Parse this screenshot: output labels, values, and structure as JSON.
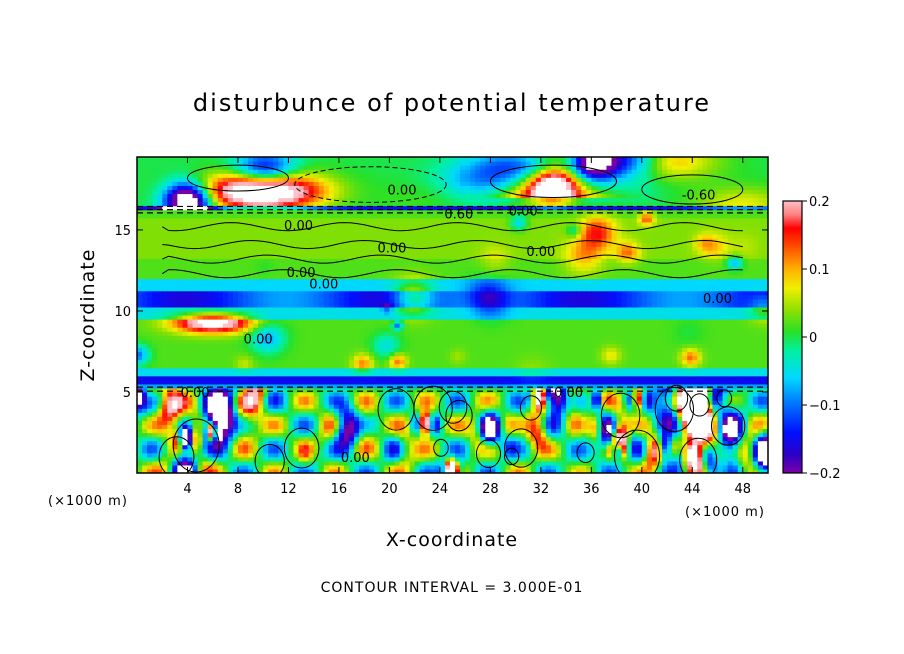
{
  "chart_data": {
    "type": "heatmap",
    "title": "disturbunce of potential temperature",
    "xlabel": "X-coordinate",
    "ylabel": "Z-coordinate",
    "x_unit": "(×1000 m)",
    "x_unit_left": "(×1000 m)",
    "xlim": [
      0,
      50
    ],
    "ylim": [
      0,
      19.5
    ],
    "x_ticks": [
      4,
      8,
      12,
      16,
      20,
      24,
      28,
      32,
      36,
      40,
      44,
      48
    ],
    "y_ticks": [
      5,
      10,
      15
    ],
    "colorbar": {
      "range": [
        -0.2,
        0.2
      ],
      "ticks": [
        {
          "v": 0.2,
          "label": "0.2"
        },
        {
          "v": 0.1,
          "label": "0.1"
        },
        {
          "v": 0,
          "label": "0"
        },
        {
          "v": -0.1,
          "label": "−0.1"
        },
        {
          "v": -0.2,
          "label": "−0.2"
        }
      ]
    },
    "contour_interval_text": "CONTOUR INTERVAL = 3.000E-01",
    "contour_labels": [
      {
        "text": "0.00",
        "x": 21.0,
        "z": 17.5
      },
      {
        "text": "0.60",
        "x": 25.5,
        "z": 16.0
      },
      {
        "text": "0.00",
        "x": 30.6,
        "z": 16.2
      },
      {
        "text": "-0.60",
        "x": 44.5,
        "z": 17.2
      },
      {
        "text": "0.00",
        "x": 12.8,
        "z": 15.3
      },
      {
        "text": "0.00",
        "x": 20.2,
        "z": 13.9
      },
      {
        "text": "0.00",
        "x": 32.0,
        "z": 13.7
      },
      {
        "text": "0.00",
        "x": 13.0,
        "z": 12.4
      },
      {
        "text": "0.00",
        "x": 14.8,
        "z": 11.7
      },
      {
        "text": "0.00",
        "x": 46.0,
        "z": 10.8
      },
      {
        "text": "0.00",
        "x": 9.6,
        "z": 8.3
      },
      {
        "text": "0.00",
        "x": 4.6,
        "z": 5.0
      },
      {
        "text": "0.00",
        "x": 34.2,
        "z": 5.0
      },
      {
        "text": "0.00",
        "x": 17.3,
        "z": 1.0
      }
    ],
    "features": {
      "positive_band_z": [
        13.2,
        15.8
      ],
      "negative_band_z": [
        10.2,
        11.2
      ],
      "negative_band2_z": [
        5.6,
        6.0
      ],
      "tropopause_z": 16.2,
      "turbulent_layer_top_z": 5.2,
      "upper_layer_bottom_z": 16.2
    },
    "grid": false,
    "legend": "colorbar-right"
  }
}
